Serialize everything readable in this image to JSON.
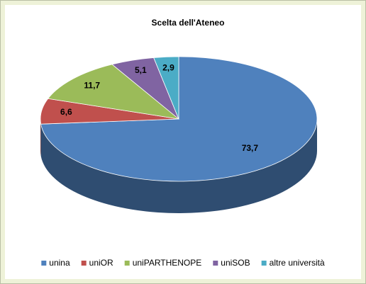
{
  "chart_data": {
    "type": "pie",
    "title": "Scelta dell'Ateneo",
    "categories": [
      "unina",
      "uniOR",
      "uniPARTHENOPE",
      "uniSOB",
      "altre università"
    ],
    "values": [
      73.7,
      6.6,
      11.7,
      5.1,
      2.9
    ],
    "value_labels": [
      "73,7",
      "6,6",
      "11,7",
      "5,1",
      "2,9"
    ],
    "colors": [
      "#4f81bd",
      "#c0504d",
      "#9bbb59",
      "#8064a2",
      "#4bacc6"
    ],
    "legend": "bottom"
  }
}
